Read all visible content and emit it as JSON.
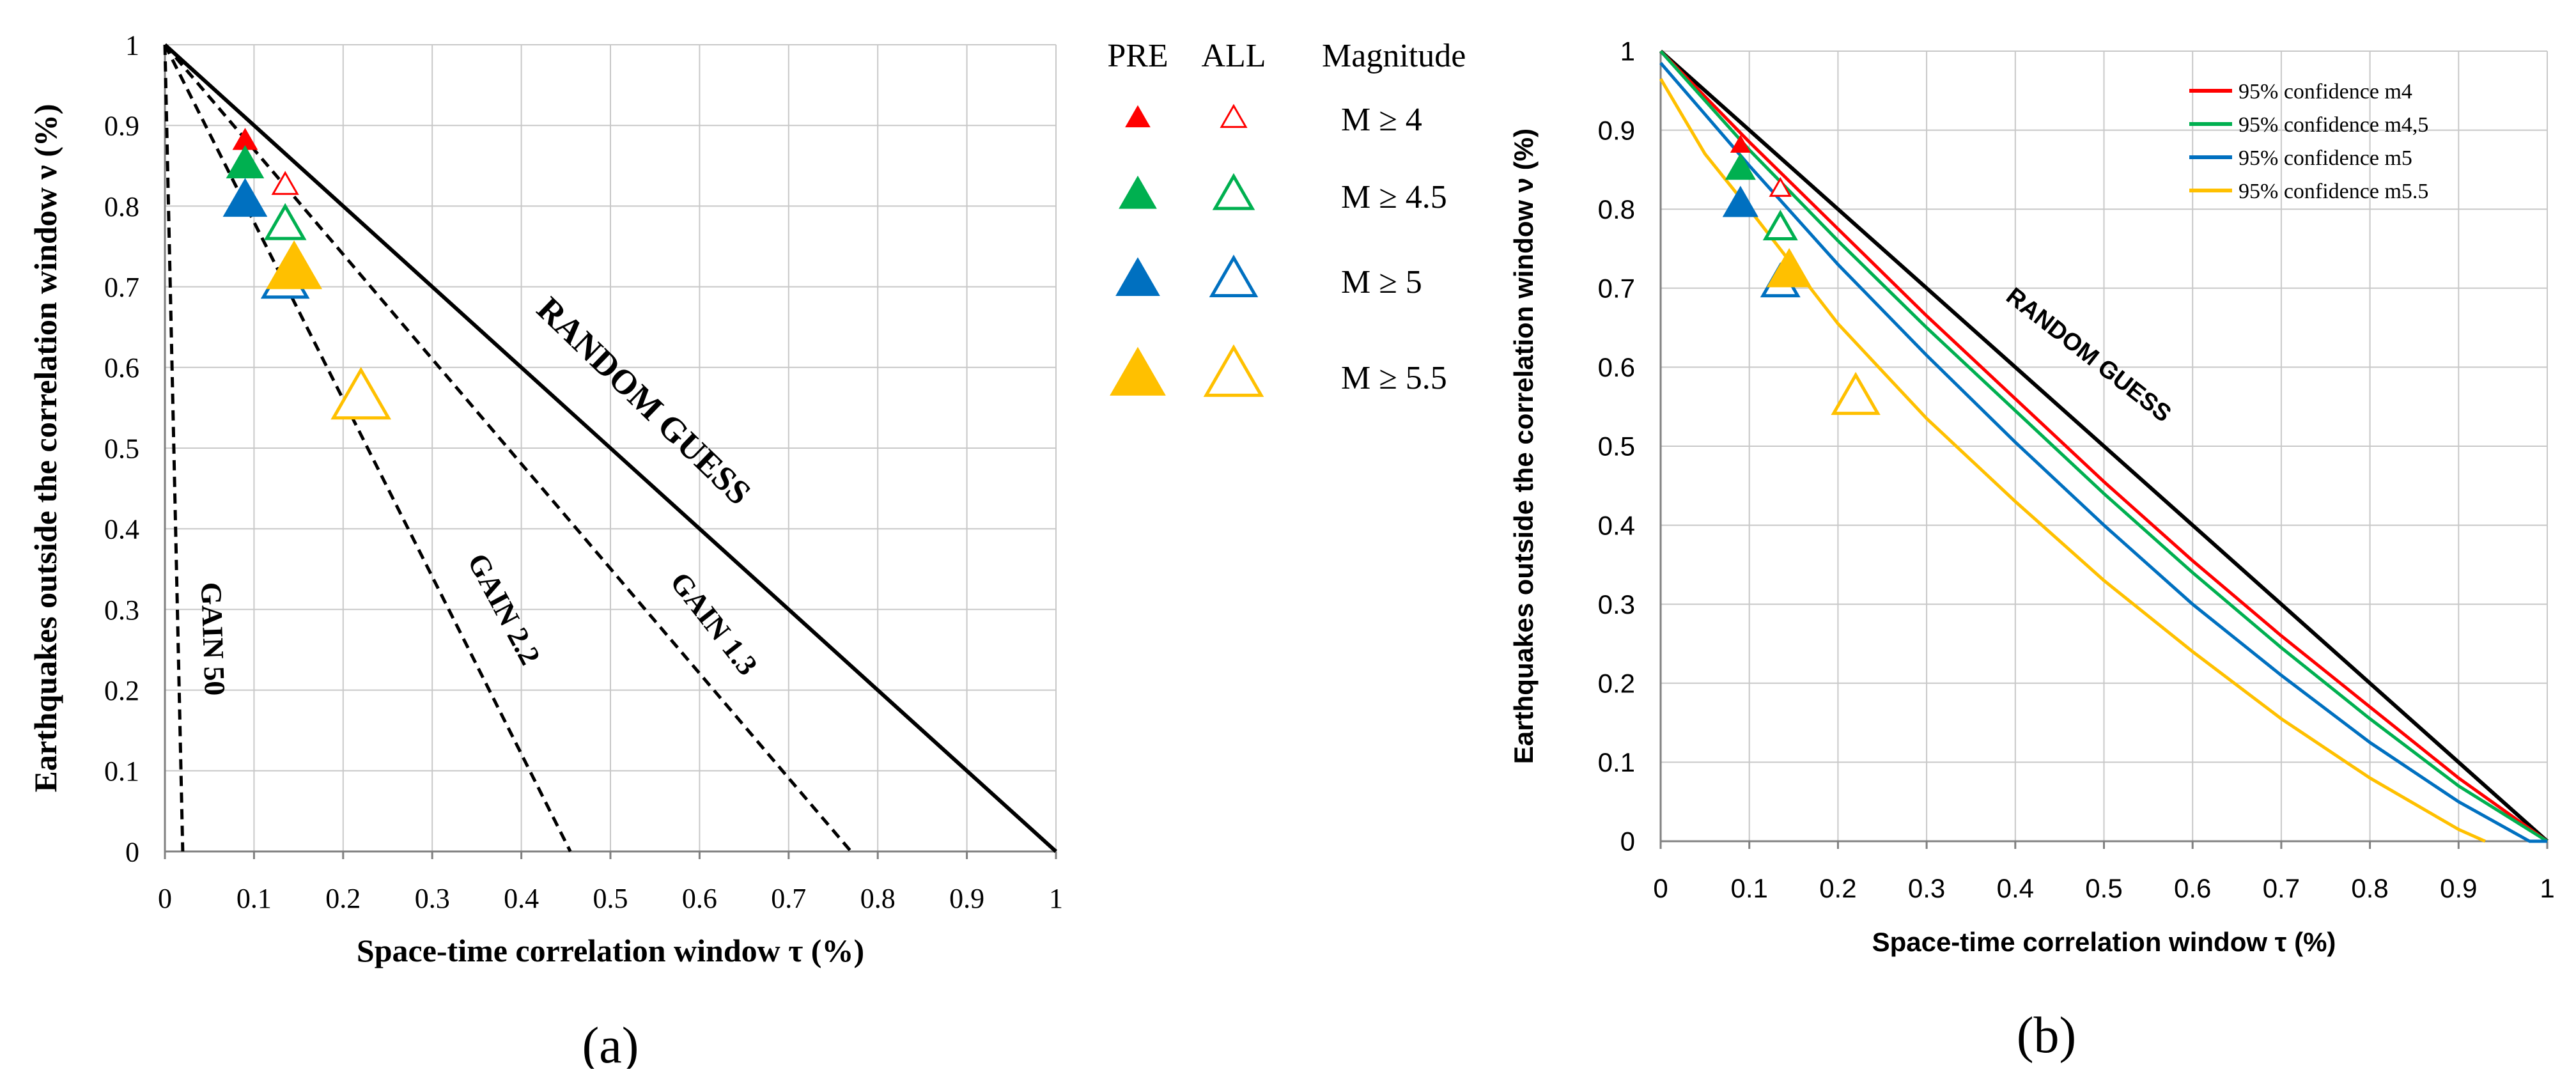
{
  "chart_data": [
    {
      "panel_label": "(a)",
      "type": "scatter",
      "xlabel": "Space-time correlation window τ (%)",
      "ylabel": "Earthquakes outside the correlation window ν (%)",
      "xlim": [
        0,
        1
      ],
      "ylim": [
        0,
        1
      ],
      "xticks": [
        "0",
        "0.1",
        "0.2",
        "0.3",
        "0.4",
        "0.5",
        "0.6",
        "0.7",
        "0.8",
        "0.9",
        "1"
      ],
      "yticks": [
        "0",
        "0.1",
        "0.2",
        "0.3",
        "0.4",
        "0.5",
        "0.6",
        "0.7",
        "0.8",
        "0.9",
        "1"
      ],
      "grid": true,
      "reference_lines": [
        {
          "label": "RANDOM GUESS",
          "style": "solid",
          "x": [
            0,
            1
          ],
          "y": [
            1,
            0
          ]
        },
        {
          "label": "GAIN 1.3",
          "style": "dashed",
          "x": [
            0,
            0.77
          ],
          "y": [
            1,
            0
          ]
        },
        {
          "label": "GAIN 2.2",
          "style": "dashed",
          "x": [
            0,
            0.455
          ],
          "y": [
            1,
            0
          ]
        },
        {
          "label": "GAIN 50",
          "style": "dashed",
          "x": [
            0,
            0.02
          ],
          "y": [
            1,
            0
          ]
        }
      ],
      "legend_headers": [
        "PRE",
        "ALL",
        "Magnitude"
      ],
      "legend_position": "right of plot",
      "series": [
        {
          "name": "M ≥ 4",
          "color": "#ff0000",
          "pre": {
            "x": 0.09,
            "y": 0.88
          },
          "all": {
            "x": 0.135,
            "y": 0.825
          }
        },
        {
          "name": "M ≥ 4.5",
          "color": "#00b050",
          "pre": {
            "x": 0.09,
            "y": 0.85
          },
          "all": {
            "x": 0.135,
            "y": 0.775
          }
        },
        {
          "name": "M ≥ 5",
          "color": "#0070c0",
          "pre": {
            "x": 0.09,
            "y": 0.805
          },
          "all": {
            "x": 0.135,
            "y": 0.705
          }
        },
        {
          "name": "M ≥ 5.5",
          "color": "#ffc000",
          "pre": {
            "x": 0.145,
            "y": 0.72
          },
          "all": {
            "x": 0.22,
            "y": 0.56
          }
        }
      ]
    },
    {
      "panel_label": "(b)",
      "type": "line",
      "xlabel": "Space-time correlation window τ (%)",
      "ylabel": "Earthquakes outside the correlation window ν (%)",
      "xlim": [
        0,
        1
      ],
      "ylim": [
        0,
        1
      ],
      "xticks": [
        "0",
        "0.1",
        "0.2",
        "0.3",
        "0.4",
        "0.5",
        "0.6",
        "0.7",
        "0.8",
        "0.9",
        "1"
      ],
      "yticks": [
        "0",
        "0.1",
        "0.2",
        "0.3",
        "0.4",
        "0.5",
        "0.6",
        "0.7",
        "0.8",
        "0.9",
        "1"
      ],
      "grid": true,
      "legend_position": "top-right",
      "reference_lines": [
        {
          "label": "RANDOM GUESS",
          "style": "solid",
          "color": "#000000",
          "x": [
            0,
            1
          ],
          "y": [
            1,
            0
          ]
        }
      ],
      "series": [
        {
          "name": "95% confidence m4",
          "color": "#ff0000",
          "x": [
            0,
            0.1,
            0.2,
            0.3,
            0.4,
            0.5,
            0.6,
            0.7,
            0.8,
            0.9,
            1.0
          ],
          "y": [
            1.0,
            0.885,
            0.775,
            0.665,
            0.56,
            0.455,
            0.355,
            0.26,
            0.17,
            0.08,
            0
          ]
        },
        {
          "name": "95% confidence m4,5",
          "color": "#00b050",
          "x": [
            0,
            0.1,
            0.2,
            0.3,
            0.4,
            0.5,
            0.6,
            0.7,
            0.8,
            0.9,
            1.0
          ],
          "y": [
            1.0,
            0.875,
            0.76,
            0.65,
            0.545,
            0.44,
            0.34,
            0.245,
            0.155,
            0.07,
            0
          ]
        },
        {
          "name": "95% confidence m5",
          "color": "#0070c0",
          "x": [
            0,
            0.1,
            0.2,
            0.3,
            0.4,
            0.5,
            0.6,
            0.7,
            0.8,
            0.9,
            0.98,
            1.0
          ],
          "y": [
            0.985,
            0.855,
            0.73,
            0.615,
            0.505,
            0.4,
            0.3,
            0.21,
            0.125,
            0.05,
            0,
            0
          ]
        },
        {
          "name": "95% confidence m5.5",
          "color": "#ffc000",
          "x": [
            0,
            0.05,
            0.1,
            0.2,
            0.3,
            0.4,
            0.5,
            0.6,
            0.7,
            0.8,
            0.9,
            0.93
          ],
          "y": [
            0.965,
            0.87,
            0.8,
            0.655,
            0.535,
            0.43,
            0.33,
            0.24,
            0.155,
            0.08,
            0.015,
            0
          ]
        }
      ],
      "markers": [
        {
          "name": "M ≥ 4",
          "color": "#ff0000",
          "pre": {
            "x": 0.09,
            "y": 0.88
          },
          "all": {
            "x": 0.135,
            "y": 0.825
          }
        },
        {
          "name": "M ≥ 4.5",
          "color": "#00b050",
          "pre": {
            "x": 0.09,
            "y": 0.85
          },
          "all": {
            "x": 0.135,
            "y": 0.775
          }
        },
        {
          "name": "M ≥ 5",
          "color": "#0070c0",
          "pre": {
            "x": 0.09,
            "y": 0.805
          },
          "all": {
            "x": 0.135,
            "y": 0.705
          }
        },
        {
          "name": "M ≥ 5.5",
          "color": "#ffc000",
          "pre": {
            "x": 0.145,
            "y": 0.72
          },
          "all": {
            "x": 0.22,
            "y": 0.56
          }
        }
      ]
    }
  ]
}
